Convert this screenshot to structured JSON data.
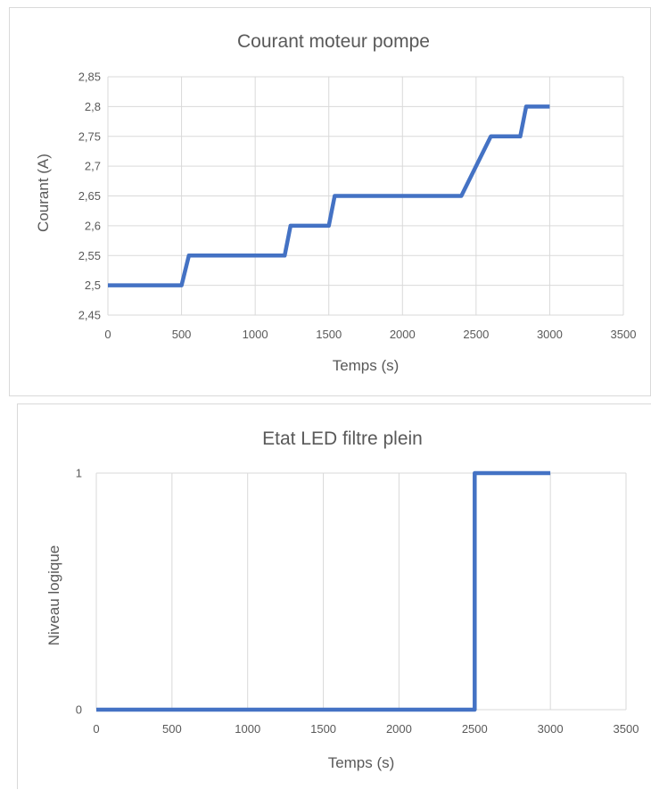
{
  "chart_data": [
    {
      "type": "line",
      "title": "Courant moteur pompe",
      "xlabel": "Temps (s)",
      "ylabel": "Courant (A)",
      "xlim": [
        0,
        3500
      ],
      "ylim": [
        2.45,
        2.85
      ],
      "xticks": [
        0,
        500,
        1000,
        1500,
        2000,
        2500,
        3000,
        3500
      ],
      "xtick_labels": [
        "0",
        "500",
        "1000",
        "1500",
        "2000",
        "2500",
        "3000",
        "3500"
      ],
      "yticks": [
        2.45,
        2.5,
        2.55,
        2.6,
        2.65,
        2.7,
        2.75,
        2.8,
        2.85
      ],
      "ytick_labels": [
        "2,45",
        "2,5",
        "2,55",
        "2,6",
        "2,65",
        "2,7",
        "2,75",
        "2,8",
        "2,85"
      ],
      "grid": "vertical and horizontal",
      "color": "#4472c4",
      "series": [
        {
          "x": [
            0,
            500,
            550,
            1200,
            1240,
            1500,
            1540,
            2400,
            2600,
            2800,
            2840,
            3000
          ],
          "y": [
            2.5,
            2.5,
            2.55,
            2.55,
            2.6,
            2.6,
            2.65,
            2.65,
            2.75,
            2.75,
            2.8,
            2.8
          ]
        }
      ]
    },
    {
      "type": "line",
      "title": "Etat LED filtre plein",
      "xlabel": "Temps (s)",
      "ylabel": "Niveau logique",
      "xlim": [
        0,
        3500
      ],
      "ylim": [
        0,
        1
      ],
      "xticks": [
        0,
        500,
        1000,
        1500,
        2000,
        2500,
        3000,
        3500
      ],
      "xtick_labels": [
        "0",
        "500",
        "1000",
        "1500",
        "2000",
        "2500",
        "3000",
        "3500"
      ],
      "yticks": [
        0,
        1
      ],
      "ytick_labels": [
        "0",
        "1"
      ],
      "grid": "vertical only",
      "color": "#4472c4",
      "series": [
        {
          "x": [
            0,
            2500,
            2500,
            3000
          ],
          "y": [
            0,
            0,
            1,
            1
          ]
        }
      ]
    }
  ]
}
